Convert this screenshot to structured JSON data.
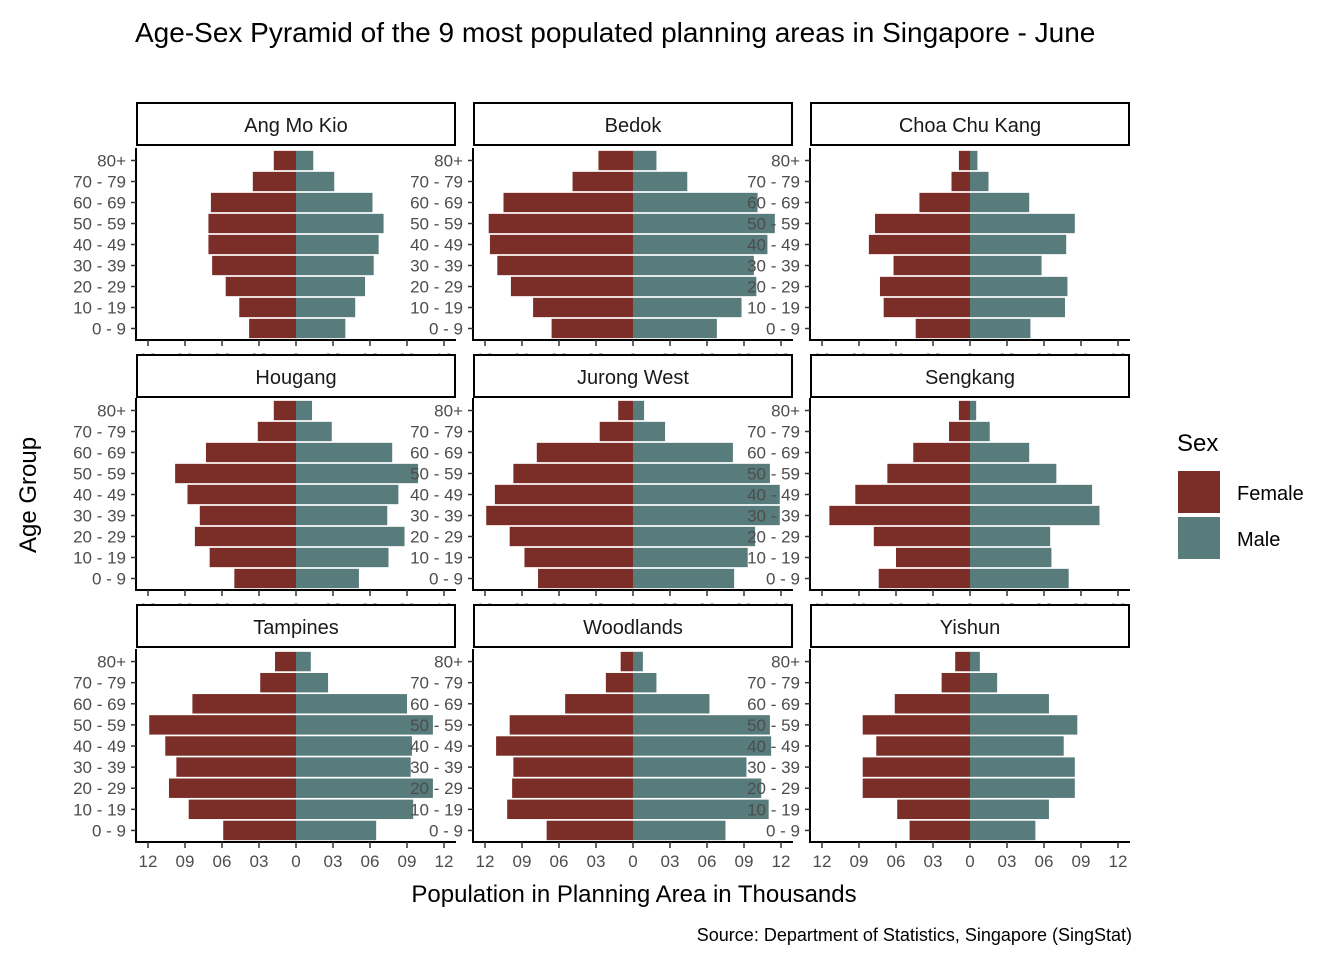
{
  "chart_data": {
    "type": "bar",
    "orientation": "horizontal",
    "layout": "facet-grid 3x3",
    "title": "Age-Sex Pyramid of the 9 most populated planning areas in Singapore - June",
    "xlabel": "Population in Planning Area in Thousands",
    "ylabel": "Age Group",
    "caption": "Source: Department of Statistics, Singapore (SingStat)",
    "xlim": [
      -12,
      12
    ],
    "x_ticks": [
      -12,
      -9,
      -6,
      -3,
      0,
      3,
      6,
      9,
      12
    ],
    "x_tick_labels": [
      "12",
      "09",
      "06",
      "03",
      "0",
      "03",
      "06",
      "09",
      "12"
    ],
    "grid": false,
    "categories": [
      "0 - 9",
      "10 - 19",
      "20 - 29",
      "30 - 39",
      "40 - 49",
      "50 - 59",
      "60 - 69",
      "70 - 79",
      "80+"
    ],
    "legend": {
      "title": "Sex",
      "position": "right",
      "items": [
        {
          "name": "Female",
          "color": "#7a2e27"
        },
        {
          "name": "Male",
          "color": "#587b7c"
        }
      ]
    },
    "panels": [
      {
        "name": "Ang Mo Kio",
        "female": [
          3.8,
          4.6,
          5.7,
          6.8,
          7.1,
          7.1,
          6.9,
          3.5,
          1.8
        ],
        "male": [
          4.0,
          4.8,
          5.6,
          6.3,
          6.7,
          7.1,
          6.2,
          3.1,
          1.4
        ]
      },
      {
        "name": "Bedok",
        "female": [
          6.6,
          8.1,
          9.9,
          11.0,
          11.6,
          11.7,
          10.5,
          4.9,
          2.8
        ],
        "male": [
          6.8,
          8.8,
          10.0,
          9.8,
          10.9,
          11.5,
          10.1,
          4.4,
          1.9
        ]
      },
      {
        "name": "Choa Chu Kang",
        "female": [
          4.4,
          7.0,
          7.3,
          6.2,
          8.2,
          7.7,
          4.1,
          1.5,
          0.9
        ],
        "male": [
          4.9,
          7.7,
          7.9,
          5.8,
          7.8,
          8.5,
          4.8,
          1.5,
          0.6
        ]
      },
      {
        "name": "Hougang",
        "female": [
          5.0,
          7.0,
          8.2,
          7.8,
          8.8,
          9.8,
          7.3,
          3.1,
          1.8
        ],
        "male": [
          5.1,
          7.5,
          8.8,
          7.4,
          8.3,
          9.9,
          7.8,
          2.9,
          1.3
        ]
      },
      {
        "name": "Jurong West",
        "female": [
          7.7,
          8.8,
          10.0,
          11.9,
          11.2,
          9.7,
          7.8,
          2.7,
          1.2
        ],
        "male": [
          8.2,
          9.3,
          9.9,
          11.9,
          11.9,
          11.1,
          8.1,
          2.6,
          0.9
        ]
      },
      {
        "name": "Sengkang",
        "female": [
          7.4,
          6.0,
          7.8,
          11.4,
          9.3,
          6.7,
          4.6,
          1.7,
          0.9
        ],
        "male": [
          8.0,
          6.6,
          6.5,
          10.5,
          9.9,
          7.0,
          4.8,
          1.6,
          0.5
        ]
      },
      {
        "name": "Tampines",
        "female": [
          5.9,
          8.7,
          10.3,
          9.7,
          10.6,
          11.9,
          8.4,
          2.9,
          1.7
        ],
        "male": [
          6.5,
          9.5,
          11.1,
          9.3,
          9.4,
          11.1,
          9.0,
          2.6,
          1.2
        ]
      },
      {
        "name": "Woodlands",
        "female": [
          7.0,
          10.2,
          9.8,
          9.7,
          11.1,
          10.0,
          5.5,
          2.2,
          1.0
        ],
        "male": [
          7.5,
          11.0,
          10.4,
          9.2,
          11.2,
          11.1,
          6.2,
          1.9,
          0.8
        ]
      },
      {
        "name": "Yishun",
        "female": [
          4.9,
          5.9,
          8.7,
          8.7,
          7.6,
          8.7,
          6.1,
          2.3,
          1.2
        ],
        "male": [
          5.3,
          6.4,
          8.5,
          8.5,
          7.6,
          8.7,
          6.4,
          2.2,
          0.8
        ]
      }
    ]
  }
}
